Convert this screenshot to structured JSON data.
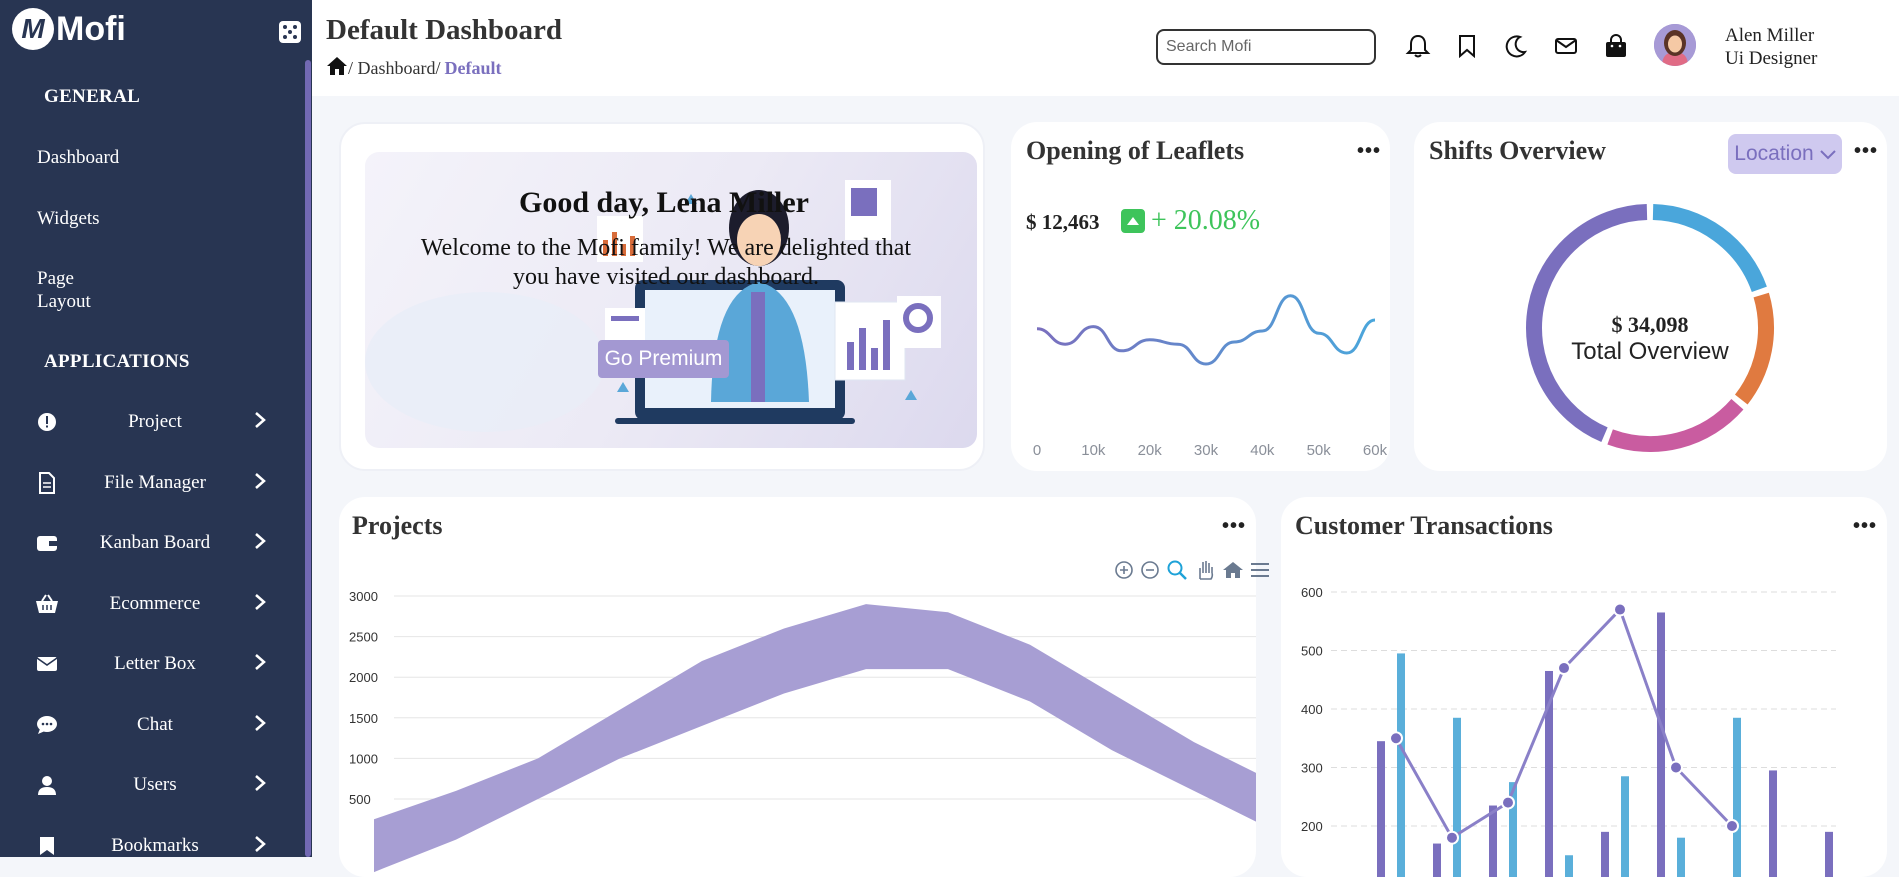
{
  "app": {
    "logo_letter": "M",
    "logo_name": "Mofi"
  },
  "sidebar": {
    "general_heading": "GENERAL",
    "general_links": [
      "Dashboard",
      "Widgets"
    ],
    "page_layout_line1": "Page",
    "page_layout_line2": "Layout",
    "applications_heading": "APPLICATIONS",
    "items": [
      {
        "label": "Project",
        "icon": "alert-circle-icon"
      },
      {
        "label": "File Manager",
        "icon": "file-icon"
      },
      {
        "label": "Kanban Board",
        "icon": "wallet-icon"
      },
      {
        "label": "Ecommerce",
        "icon": "basket-icon"
      },
      {
        "label": "Letter Box",
        "icon": "mail-icon"
      },
      {
        "label": "Chat",
        "icon": "chat-icon"
      },
      {
        "label": "Users",
        "icon": "user-icon"
      },
      {
        "label": "Bookmarks",
        "icon": "bookmark-icon"
      }
    ]
  },
  "header": {
    "title": "Default Dashboard",
    "breadcrumb_sep1": "/ Dashboard/",
    "breadcrumb_current": "Default",
    "search_placeholder": "Search Mofi",
    "icons": [
      "bell-icon",
      "bookmark-icon",
      "moon-icon",
      "mail-icon",
      "shopping-bag-icon"
    ],
    "user_name": "Alen Miller",
    "user_role": "Ui Designer"
  },
  "welcome": {
    "title": "Good day, Lena Miller",
    "text": "Welcome to the Mofi family! We are delighted that you have visited our dashboard.",
    "button": "Go Premium"
  },
  "leaflets": {
    "title": "Opening of Leaflets",
    "menu": "•••",
    "amount": "$ 12,463",
    "change": "+ 20.08%"
  },
  "shifts": {
    "title": "Shifts Overview",
    "menu": "•••",
    "location_button": "Location",
    "center_value": "$ 34,098",
    "center_label": "Total Overview"
  },
  "projects": {
    "title": "Projects",
    "menu": "•••"
  },
  "customer": {
    "title": "Customer Transactions",
    "menu": "•••"
  },
  "colors": {
    "sidebar": "#283552",
    "accent": "#7a6fbe",
    "blue": "#4aa6db",
    "orange": "#e07a40",
    "pink": "#c95ca0",
    "green": "#3ec45b"
  },
  "chart_data": [
    {
      "type": "line",
      "name": "Opening of Leaflets",
      "x": [
        0,
        5000,
        10000,
        15000,
        20000,
        25000,
        30000,
        35000,
        40000,
        45000,
        50000,
        55000,
        60000
      ],
      "values": [
        62,
        48,
        64,
        42,
        52,
        48,
        30,
        50,
        60,
        92,
        58,
        40,
        70
      ],
      "xticks": [
        "0",
        "10k",
        "20k",
        "30k",
        "40k",
        "50k",
        "60k"
      ]
    },
    {
      "type": "pie",
      "name": "Shifts Overview",
      "slices": [
        {
          "value": 20,
          "color": "#4aa6db"
        },
        {
          "value": 16,
          "color": "#e07a40"
        },
        {
          "value": 20,
          "color": "#c95ca0"
        },
        {
          "value": 44,
          "color": "#7a6fbe"
        }
      ]
    },
    {
      "type": "area",
      "name": "Projects",
      "yticks": [
        3000,
        2500,
        2000,
        1500,
        1000,
        500
      ],
      "ylim": [
        0,
        3000
      ],
      "upper": [
        250,
        600,
        1000,
        1600,
        2200,
        2600,
        2900,
        2800,
        2400,
        1800,
        1200,
        700
      ],
      "lower": [
        -400,
        0,
        500,
        1000,
        1400,
        1800,
        2100,
        2100,
        1700,
        1100,
        600,
        100
      ]
    },
    {
      "type": "bar",
      "name": "Customer Transactions",
      "yticks": [
        600,
        500,
        400,
        300,
        200
      ],
      "ylim": [
        0,
        600
      ],
      "purple": [
        345,
        170,
        235,
        465,
        190,
        565,
        110,
        295,
        190
      ],
      "blue": [
        495,
        385,
        275,
        150,
        285,
        180,
        385
      ],
      "line": [
        350,
        180,
        240,
        470,
        570,
        300,
        200
      ]
    }
  ]
}
